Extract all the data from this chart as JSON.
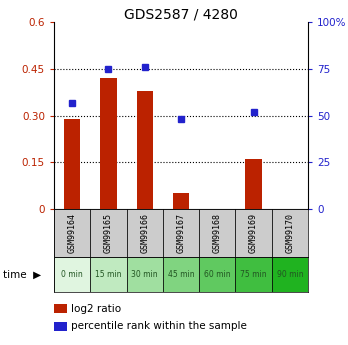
{
  "title": "GDS2587 / 4280",
  "samples": [
    "GSM99164",
    "GSM99165",
    "GSM99166",
    "GSM99167",
    "GSM99168",
    "GSM99169",
    "GSM99170"
  ],
  "time_labels": [
    "0 min",
    "15 min",
    "30 min",
    "45 min",
    "60 min",
    "75 min",
    "90 min"
  ],
  "log2_ratio": [
    0.29,
    0.42,
    0.38,
    0.05,
    0.0,
    0.16,
    0.0
  ],
  "percentile_rank": [
    57,
    75,
    76,
    48,
    null,
    52,
    null
  ],
  "left_ylim": [
    0,
    0.6
  ],
  "right_ylim": [
    0,
    100
  ],
  "left_yticks": [
    0,
    0.15,
    0.3,
    0.45,
    0.6
  ],
  "right_yticks": [
    0,
    25,
    50,
    75,
    100
  ],
  "left_yticklabels": [
    "0",
    "0.15",
    "0.30",
    "0.45",
    "0.6"
  ],
  "right_yticklabels": [
    "0",
    "25",
    "50",
    "75",
    "100%"
  ],
  "bar_color": "#bb2200",
  "dot_color": "#2222cc",
  "sample_bg_color": "#cccccc",
  "time_bg_colors": [
    "#e0f5e0",
    "#c0eac0",
    "#a0dfa0",
    "#80d480",
    "#60c960",
    "#40be40",
    "#20b320"
  ],
  "time_label_color": "#225522",
  "bar_width": 0.45,
  "legend_bar_label": "log2 ratio",
  "legend_dot_label": "percentile rank within the sample"
}
